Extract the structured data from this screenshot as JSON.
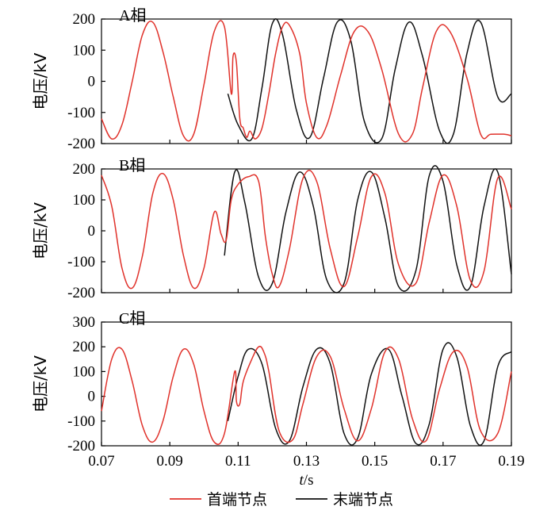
{
  "chart_data": [
    {
      "type": "line",
      "annotation": "A相",
      "ylabel": "电压/kV",
      "ylim": [
        -200,
        200
      ],
      "yticks": [
        -200,
        -100,
        0,
        100,
        200
      ],
      "xlim": [
        0.07,
        0.19
      ],
      "series": [
        {
          "name": "首端节点",
          "color": "#e0322b",
          "x": [
            0.07,
            0.073,
            0.076,
            0.079,
            0.082,
            0.085,
            0.088,
            0.091,
            0.094,
            0.097,
            0.1,
            0.103,
            0.106,
            0.108,
            0.1085,
            0.1095,
            0.1105,
            0.1115,
            0.1125,
            0.1135,
            0.115,
            0.117,
            0.119,
            0.121,
            0.123,
            0.125,
            0.128,
            0.13,
            0.133,
            0.136,
            0.14,
            0.144,
            0.148,
            0.152,
            0.157,
            0.161,
            0.164,
            0.168,
            0.172,
            0.177,
            0.181,
            0.184,
            0.188,
            0.19
          ],
          "values": [
            -120,
            -185,
            -140,
            0,
            150,
            190,
            95,
            -50,
            -175,
            -170,
            -10,
            160,
            175,
            -40,
            80,
            60,
            -120,
            -150,
            -180,
            -160,
            -185,
            -150,
            -40,
            90,
            175,
            180,
            90,
            -70,
            -180,
            -140,
            20,
            160,
            160,
            40,
            -170,
            -170,
            -20,
            160,
            160,
            10,
            -170,
            -170,
            -170,
            -175
          ]
        },
        {
          "name": "末端节点",
          "color": "#111111",
          "x": [
            0.107,
            0.11,
            0.114,
            0.117,
            0.12,
            0.123,
            0.127,
            0.131,
            0.135,
            0.139,
            0.143,
            0.147,
            0.152,
            0.156,
            0.16,
            0.164,
            0.169,
            0.173,
            0.177,
            0.181,
            0.186,
            0.19
          ],
          "values": [
            -40,
            -140,
            -185,
            -20,
            185,
            150,
            -90,
            -180,
            10,
            190,
            130,
            -130,
            -185,
            40,
            190,
            80,
            -160,
            -170,
            90,
            190,
            -50,
            -40
          ]
        }
      ]
    },
    {
      "type": "line",
      "annotation": "B相",
      "ylabel": "电压/kV",
      "ylim": [
        -200,
        200
      ],
      "yticks": [
        -200,
        -100,
        0,
        100,
        200
      ],
      "xlim": [
        0.07,
        0.19
      ],
      "series": [
        {
          "name": "首端节点",
          "color": "#e0322b",
          "x": [
            0.07,
            0.073,
            0.076,
            0.079,
            0.082,
            0.085,
            0.088,
            0.091,
            0.094,
            0.097,
            0.1,
            0.103,
            0.105,
            0.1065,
            0.108,
            0.11,
            0.113,
            0.116,
            0.118,
            0.12,
            0.122,
            0.125,
            0.129,
            0.133,
            0.137,
            0.141,
            0.145,
            0.149,
            0.153,
            0.157,
            0.162,
            0.166,
            0.17,
            0.174,
            0.178,
            0.182,
            0.186,
            0.19
          ],
          "values": [
            180,
            80,
            -120,
            -185,
            -80,
            120,
            185,
            100,
            -80,
            -185,
            -120,
            60,
            -10,
            -30,
            100,
            150,
            175,
            160,
            -20,
            -140,
            -180,
            -60,
            170,
            160,
            -60,
            -180,
            -20,
            175,
            120,
            -110,
            -170,
            30,
            180,
            80,
            -160,
            -130,
            170,
            70
          ]
        },
        {
          "name": "末端节点",
          "color": "#111111",
          "x": [
            0.106,
            0.109,
            0.112,
            0.116,
            0.12,
            0.124,
            0.128,
            0.132,
            0.136,
            0.141,
            0.145,
            0.149,
            0.153,
            0.157,
            0.162,
            0.166,
            0.17,
            0.174,
            0.178,
            0.182,
            0.186,
            0.19
          ],
          "values": [
            -80,
            190,
            90,
            -150,
            -170,
            60,
            190,
            80,
            -160,
            -170,
            100,
            190,
            40,
            -180,
            -130,
            180,
            160,
            -110,
            -180,
            80,
            190,
            -140
          ]
        }
      ]
    },
    {
      "type": "line",
      "annotation": "C相",
      "ylabel": "电压/kV",
      "ylim": [
        -200,
        300
      ],
      "yticks": [
        -200,
        -100,
        0,
        100,
        200,
        300
      ],
      "xlim": [
        0.07,
        0.19
      ],
      "xticks": [
        0.07,
        0.09,
        0.11,
        0.13,
        0.15,
        0.17,
        0.19
      ],
      "xlabel": "t/s",
      "series": [
        {
          "name": "首端节点",
          "color": "#e0322b",
          "x": [
            0.07,
            0.073,
            0.076,
            0.079,
            0.082,
            0.085,
            0.088,
            0.091,
            0.094,
            0.097,
            0.1,
            0.103,
            0.106,
            0.109,
            0.1095,
            0.1105,
            0.1115,
            0.114,
            0.116,
            0.1175,
            0.119,
            0.122,
            0.126,
            0.129,
            0.133,
            0.137,
            0.141,
            0.145,
            0.149,
            0.153,
            0.157,
            0.161,
            0.165,
            0.169,
            0.173,
            0.177,
            0.181,
            0.186,
            0.19
          ],
          "values": [
            -60,
            150,
            190,
            60,
            -120,
            -185,
            -100,
            80,
            190,
            130,
            -60,
            -185,
            -150,
            100,
            -20,
            -30,
            60,
            150,
            200,
            180,
            100,
            -140,
            -175,
            -30,
            160,
            160,
            -50,
            -180,
            -50,
            180,
            150,
            -90,
            -180,
            30,
            180,
            120,
            -140,
            -150,
            100
          ]
        },
        {
          "name": "末端节点",
          "color": "#111111",
          "x": [
            0.107,
            0.11,
            0.113,
            0.117,
            0.121,
            0.125,
            0.129,
            0.133,
            0.137,
            0.141,
            0.145,
            0.149,
            0.154,
            0.158,
            0.162,
            0.166,
            0.17,
            0.174,
            0.178,
            0.182,
            0.186,
            0.19
          ],
          "values": [
            -100,
            80,
            190,
            130,
            -130,
            -180,
            40,
            190,
            130,
            -150,
            -170,
            90,
            190,
            0,
            -190,
            -110,
            190,
            160,
            -120,
            -180,
            120,
            180
          ]
        }
      ]
    }
  ],
  "legend": {
    "position": "bottom-center",
    "items": [
      {
        "label": "首端节点",
        "color": "#e0322b"
      },
      {
        "label": "末端节点",
        "color": "#111111"
      }
    ]
  }
}
